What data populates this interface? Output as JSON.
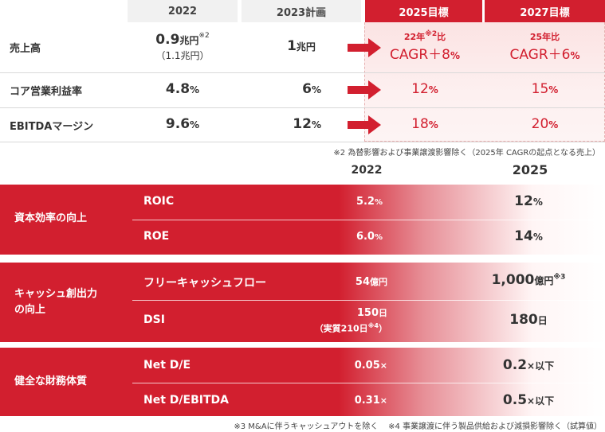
{
  "top_table": {
    "headers": {
      "col_2022": "2022",
      "col_2023": "2023計画",
      "col_2025": "2025目標",
      "col_2027": "2027目標"
    },
    "rows": [
      {
        "label": "売上高",
        "v2022_main": "0.9",
        "v2022_unit": "兆円",
        "v2022_sup": "※2",
        "v2022_sub": "（1.1兆円）",
        "v2023_main": "1",
        "v2023_unit": "兆円",
        "v2025_line1": "22年",
        "v2025_sup": "※2",
        "v2025_line1b": "比",
        "v2025_line2": "CAGR＋8",
        "v2025_unit": "%",
        "v2027_line1": "25年比",
        "v2027_line2": "CAGR＋6",
        "v2027_unit": "%"
      },
      {
        "label": "コア営業利益率",
        "v2022_main": "4.8",
        "v2022_unit": "%",
        "v2023_main": "6",
        "v2023_unit": "%",
        "v2025_main": "12",
        "v2025_unit": "%",
        "v2027_main": "15",
        "v2027_unit": "%"
      },
      {
        "label": "EBITDAマージン",
        "v2022_main": "9.6",
        "v2022_unit": "%",
        "v2023_main": "12",
        "v2023_unit": "%",
        "v2025_main": "18",
        "v2025_unit": "%",
        "v2027_main": "20",
        "v2027_unit": "%"
      }
    ],
    "note": "※2 為替影響および事業譲渡影響除く（2025年 CAGRの起点となる売上）"
  },
  "bottom_table": {
    "year_2022": "2022",
    "year_2025": "2025",
    "groups": [
      {
        "category": "資本効率の向上",
        "items": [
          {
            "label": "ROIC",
            "v2022_main": "5.2",
            "v2022_unit": "%",
            "v2025_main": "12",
            "v2025_unit": "%"
          },
          {
            "label": "ROE",
            "v2022_main": "6.0",
            "v2022_unit": "%",
            "v2025_main": "14",
            "v2025_unit": "%"
          }
        ]
      },
      {
        "category_line1": "キャッシュ創出力",
        "category_line2": "の向上",
        "items": [
          {
            "label": "フリーキャッシュフロー",
            "v2022_main": "54",
            "v2022_unit": "億円",
            "v2025_main": "1,000",
            "v2025_unit": "億円",
            "v2025_sup": "※3"
          },
          {
            "label": "DSI",
            "v2022_main": "150",
            "v2022_unit": "日",
            "v2022_sub": "（実質210日",
            "v2022_sub_sup": "※4",
            "v2022_sub_end": "）",
            "v2025_main": "180",
            "v2025_unit": "日"
          }
        ]
      },
      {
        "category": "健全な財務体質",
        "items": [
          {
            "label": "Net D/E",
            "v2022_main": "0.05",
            "v2022_unit": "×",
            "v2025_main": "0.2",
            "v2025_unit": "×以下"
          },
          {
            "label": "Net D/EBITDA",
            "v2022_main": "0.31",
            "v2022_unit": "×",
            "v2025_main": "0.5",
            "v2025_unit": "×以下"
          }
        ]
      }
    ],
    "note_3": "※3 M&Aに伴うキャッシュアウトを除く",
    "note_4": "※4 事業譲渡に伴う製品供給および減損影響除く（試算値）"
  },
  "colors": {
    "accent": "#d21f2f",
    "header_gray": "#f1f1f1",
    "pink": "#fbe3e3"
  }
}
